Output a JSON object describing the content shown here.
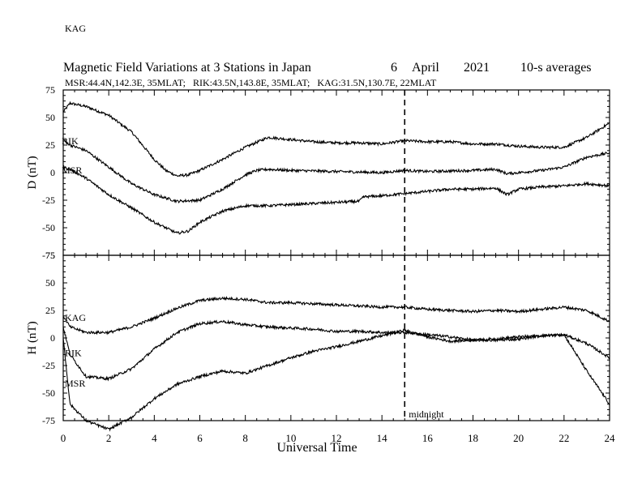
{
  "title": "Magnetic Field Variations at 3 Stations in Japan",
  "date": {
    "day": "6",
    "month": "April",
    "year": "2021"
  },
  "averaging": "10-s averages",
  "stations_line": "MSR:44.4N,142.3E, 35MLAT;   RIK:43.5N,143.8E, 35MLAT;   KAG:31.5N,130.7E, 22MLAT",
  "top_station_label": "KAG",
  "chart_data": [
    {
      "type": "line",
      "panel": "D",
      "ylabel": "D (nT)",
      "ylim": [
        -75,
        75
      ],
      "yticks": [
        "75",
        "50",
        "25",
        "0",
        "-25",
        "-50",
        "-75"
      ],
      "xlim": [
        0,
        24
      ],
      "grid": false,
      "series": [
        {
          "name": "KAG",
          "label_printed": false,
          "x": [
            0,
            0.3,
            1,
            2,
            3,
            4,
            4.5,
            5,
            5.5,
            6,
            7,
            8,
            9,
            10,
            11,
            12,
            13,
            14,
            15,
            16,
            17,
            18,
            19,
            20,
            21,
            22,
            23,
            24
          ],
          "y": [
            55,
            63,
            60,
            52,
            37,
            12,
            2,
            -3,
            -2,
            2,
            12,
            23,
            32,
            30,
            28,
            27,
            27,
            26,
            29,
            28,
            28,
            26,
            26,
            24,
            23,
            23,
            32,
            45
          ]
        },
        {
          "name": "RIK",
          "label_printed": true,
          "x": [
            0,
            0.3,
            1,
            2,
            3,
            4,
            5,
            6,
            7,
            8,
            8.5,
            9,
            10,
            12,
            14,
            15,
            16,
            18,
            19,
            19.5,
            20,
            21,
            22,
            23,
            24
          ],
          "y": [
            30,
            25,
            20,
            5,
            -10,
            -20,
            -26,
            -25,
            -15,
            -2,
            2,
            3,
            2,
            1,
            0,
            2,
            1,
            2,
            3,
            -1,
            0,
            2,
            5,
            14,
            18
          ]
        },
        {
          "name": "MSR",
          "label_printed": true,
          "x": [
            0,
            0.3,
            1,
            2,
            3,
            4,
            5,
            5.5,
            6,
            7,
            8,
            9,
            10,
            11,
            12,
            13,
            13.2,
            14,
            15,
            16,
            17,
            18,
            19,
            19.5,
            20,
            21,
            22,
            23,
            24
          ],
          "y": [
            5,
            3,
            -5,
            -20,
            -32,
            -45,
            -55,
            -53,
            -45,
            -35,
            -30,
            -30,
            -29,
            -28,
            -27,
            -26,
            -22,
            -21,
            -19,
            -17,
            -15,
            -15,
            -14,
            -20,
            -15,
            -13,
            -12,
            -10,
            -12
          ]
        }
      ]
    },
    {
      "type": "line",
      "panel": "H",
      "ylabel": "H (nT)",
      "ylim": [
        -75,
        75
      ],
      "yticks": [
        "75",
        "50",
        "25",
        "0",
        "-25",
        "-50",
        "-75"
      ],
      "xlabel": "Universal Time",
      "xlim": [
        0,
        24
      ],
      "xticks": [
        "0",
        "2",
        "4",
        "6",
        "8",
        "10",
        "12",
        "14",
        "16",
        "18",
        "20",
        "22",
        "24"
      ],
      "grid": false,
      "series": [
        {
          "name": "KAG",
          "label_printed": true,
          "x": [
            0,
            0.3,
            1,
            2,
            3,
            4,
            5,
            6,
            7,
            8,
            9,
            10,
            11,
            12,
            13,
            14,
            15,
            16,
            17,
            18,
            19,
            20,
            21,
            22,
            23,
            24
          ],
          "y": [
            20,
            10,
            5,
            5,
            10,
            18,
            27,
            34,
            36,
            35,
            32,
            32,
            31,
            30,
            29,
            28,
            28,
            26,
            25,
            24,
            25,
            24,
            26,
            28,
            25,
            15
          ]
        },
        {
          "name": "RIK",
          "label_printed": true,
          "x": [
            0,
            0.3,
            1,
            2,
            3,
            4,
            5,
            6,
            7,
            8,
            9,
            10,
            11,
            12,
            13,
            14,
            15,
            16,
            17,
            18,
            19,
            20,
            21,
            22,
            23,
            24
          ],
          "y": [
            10,
            -15,
            -35,
            -37,
            -28,
            -10,
            5,
            13,
            15,
            12,
            10,
            9,
            8,
            6,
            6,
            5,
            5,
            3,
            1,
            -2,
            -2,
            -1,
            2,
            3,
            -5,
            -18
          ]
        },
        {
          "name": "MSR",
          "label_printed": true,
          "x": [
            0,
            0.3,
            1,
            2,
            3,
            4,
            5,
            6,
            7,
            8,
            9,
            10,
            11,
            12,
            13,
            14,
            15,
            16,
            17,
            18,
            19,
            20,
            21,
            22,
            23,
            24
          ],
          "y": [
            0,
            -60,
            -75,
            -83,
            -72,
            -55,
            -42,
            -35,
            -30,
            -32,
            -25,
            -18,
            -12,
            -8,
            -3,
            2,
            7,
            1,
            -3,
            -2,
            -1,
            1,
            2,
            3,
            -30,
            -60
          ]
        }
      ]
    }
  ],
  "annotation": {
    "label": "midnight",
    "x": 15
  }
}
